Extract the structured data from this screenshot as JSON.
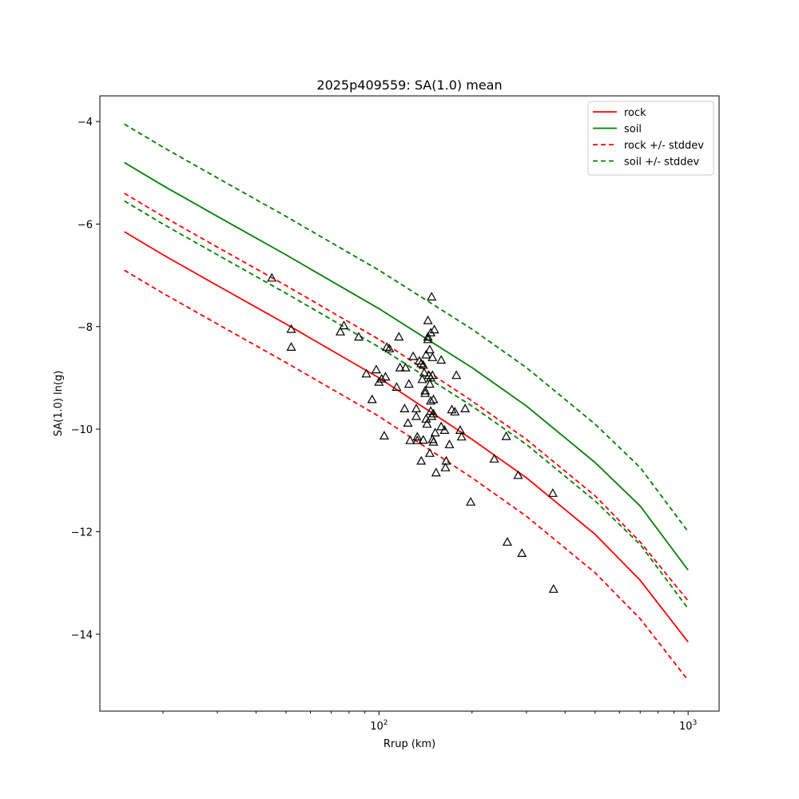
{
  "chart_data": {
    "type": "scatter",
    "title": "2025p409559: SA(1.0) mean",
    "xlabel": "Rrup (km)",
    "ylabel": "SA(1.0) ln(g)",
    "xscale": "log",
    "xlim": [
      12.5,
      1260
    ],
    "ylim": [
      -15.5,
      -3.5
    ],
    "xticks": [
      {
        "value": 100,
        "label": "10",
        "sup": "2"
      },
      {
        "value": 1000,
        "label": "10",
        "sup": "3"
      }
    ],
    "yticks": [
      {
        "value": -4,
        "label": "−4"
      },
      {
        "value": -6,
        "label": "−6"
      },
      {
        "value": -8,
        "label": "−8"
      },
      {
        "value": -10,
        "label": "−10"
      },
      {
        "value": -12,
        "label": "−12"
      },
      {
        "value": -14,
        "label": "−14"
      }
    ],
    "grid": false,
    "legend_position": "top-right",
    "series": [
      {
        "name": "rock",
        "color": "#ff0000",
        "style": "solid",
        "x": [
          15,
          20,
          30,
          50,
          100,
          200,
          300,
          500,
          700,
          1000
        ],
        "y": [
          -6.15,
          -6.6,
          -7.2,
          -7.95,
          -9.0,
          -10.2,
          -10.95,
          -12.05,
          -12.95,
          -14.15
        ]
      },
      {
        "name": "soil",
        "color": "#008000",
        "style": "solid",
        "x": [
          15,
          20,
          30,
          50,
          100,
          200,
          300,
          500,
          700,
          1000
        ],
        "y": [
          -4.8,
          -5.25,
          -5.85,
          -6.6,
          -7.65,
          -8.8,
          -9.55,
          -10.65,
          -11.5,
          -12.75
        ]
      },
      {
        "name": "rock +/- stddev",
        "color": "#ff0000",
        "style": "dashed",
        "x": [
          15,
          20,
          30,
          50,
          100,
          200,
          300,
          500,
          700,
          1000
        ],
        "y": [
          -5.4,
          -5.85,
          -6.45,
          -7.2,
          -8.25,
          -9.45,
          -10.2,
          -11.3,
          -12.2,
          -13.35
        ],
        "y2": [
          -6.9,
          -7.35,
          -7.95,
          -8.7,
          -9.75,
          -10.95,
          -11.7,
          -12.8,
          -13.7,
          -14.9
        ]
      },
      {
        "name": "soil +/- stddev",
        "color": "#008000",
        "style": "dashed",
        "x": [
          15,
          20,
          30,
          50,
          100,
          200,
          300,
          500,
          700,
          1000
        ],
        "y": [
          -4.05,
          -4.5,
          -5.1,
          -5.85,
          -6.9,
          -8.05,
          -8.8,
          -9.9,
          -10.75,
          -12.0
        ],
        "y2": [
          -5.55,
          -6.0,
          -6.6,
          -7.35,
          -8.4,
          -9.55,
          -10.3,
          -11.4,
          -12.25,
          -13.5
        ]
      }
    ],
    "observations": {
      "marker": "triangle",
      "color": "#000000",
      "points": [
        [
          45,
          -7.05
        ],
        [
          52,
          -8.05
        ],
        [
          52,
          -8.4
        ],
        [
          75,
          -8.1
        ],
        [
          77,
          -7.98
        ],
        [
          86,
          -8.2
        ],
        [
          91,
          -8.92
        ],
        [
          95,
          -9.42
        ],
        [
          98,
          -8.84
        ],
        [
          100,
          -9.08
        ],
        [
          102,
          -9.02
        ],
        [
          104,
          -10.13
        ],
        [
          105,
          -8.98
        ],
        [
          106,
          -8.4
        ],
        [
          108,
          -8.43
        ],
        [
          114,
          -9.18
        ],
        [
          116,
          -8.2
        ],
        [
          117,
          -8.8
        ],
        [
          121,
          -9.6
        ],
        [
          122,
          -8.8
        ],
        [
          124,
          -9.88
        ],
        [
          125,
          -9.12
        ],
        [
          126,
          -10.22
        ],
        [
          129,
          -8.58
        ],
        [
          132,
          -9.75
        ],
        [
          132,
          -9.6
        ],
        [
          133,
          -10.15
        ],
        [
          133,
          -10.22
        ],
        [
          135,
          -8.67
        ],
        [
          137,
          -8.72
        ],
        [
          137,
          -10.62
        ],
        [
          138,
          -9.03
        ],
        [
          139,
          -10.21
        ],
        [
          139,
          -8.75
        ],
        [
          140,
          -8.9
        ],
        [
          141,
          -9.25
        ],
        [
          141,
          -9.3
        ],
        [
          142,
          -8.55
        ],
        [
          142,
          -9.8
        ],
        [
          143,
          -9.9
        ],
        [
          144,
          -8.2
        ],
        [
          144,
          -8.25
        ],
        [
          144,
          -7.88
        ],
        [
          145,
          -8.95
        ],
        [
          146,
          -8.45
        ],
        [
          146,
          -9.12
        ],
        [
          146,
          -10.47
        ],
        [
          147,
          -8.12
        ],
        [
          147,
          -9.0
        ],
        [
          147,
          -9.45
        ],
        [
          147,
          -9.65
        ],
        [
          148,
          -7.42
        ],
        [
          148,
          -9.75
        ],
        [
          149,
          -8.6
        ],
        [
          149,
          -8.95
        ],
        [
          149,
          -10.2
        ],
        [
          150,
          -9.7
        ],
        [
          150,
          -9.42
        ],
        [
          150,
          -10.25
        ],
        [
          151,
          -8.06
        ],
        [
          152,
          -10.07
        ],
        [
          153,
          -10.85
        ],
        [
          159,
          -8.65
        ],
        [
          159,
          -9.95
        ],
        [
          163,
          -10.02
        ],
        [
          164,
          -10.75
        ],
        [
          165,
          -10.62
        ],
        [
          169,
          -10.3
        ],
        [
          172,
          -9.62
        ],
        [
          176,
          -9.66
        ],
        [
          178,
          -8.95
        ],
        [
          183,
          -10.02
        ],
        [
          185,
          -10.15
        ],
        [
          190,
          -9.6
        ],
        [
          198,
          -11.42
        ],
        [
          236,
          -10.58
        ],
        [
          258,
          -10.14
        ],
        [
          260,
          -12.2
        ],
        [
          282,
          -10.9
        ],
        [
          290,
          -12.42
        ],
        [
          365,
          -11.25
        ],
        [
          367,
          -13.12
        ]
      ]
    }
  }
}
